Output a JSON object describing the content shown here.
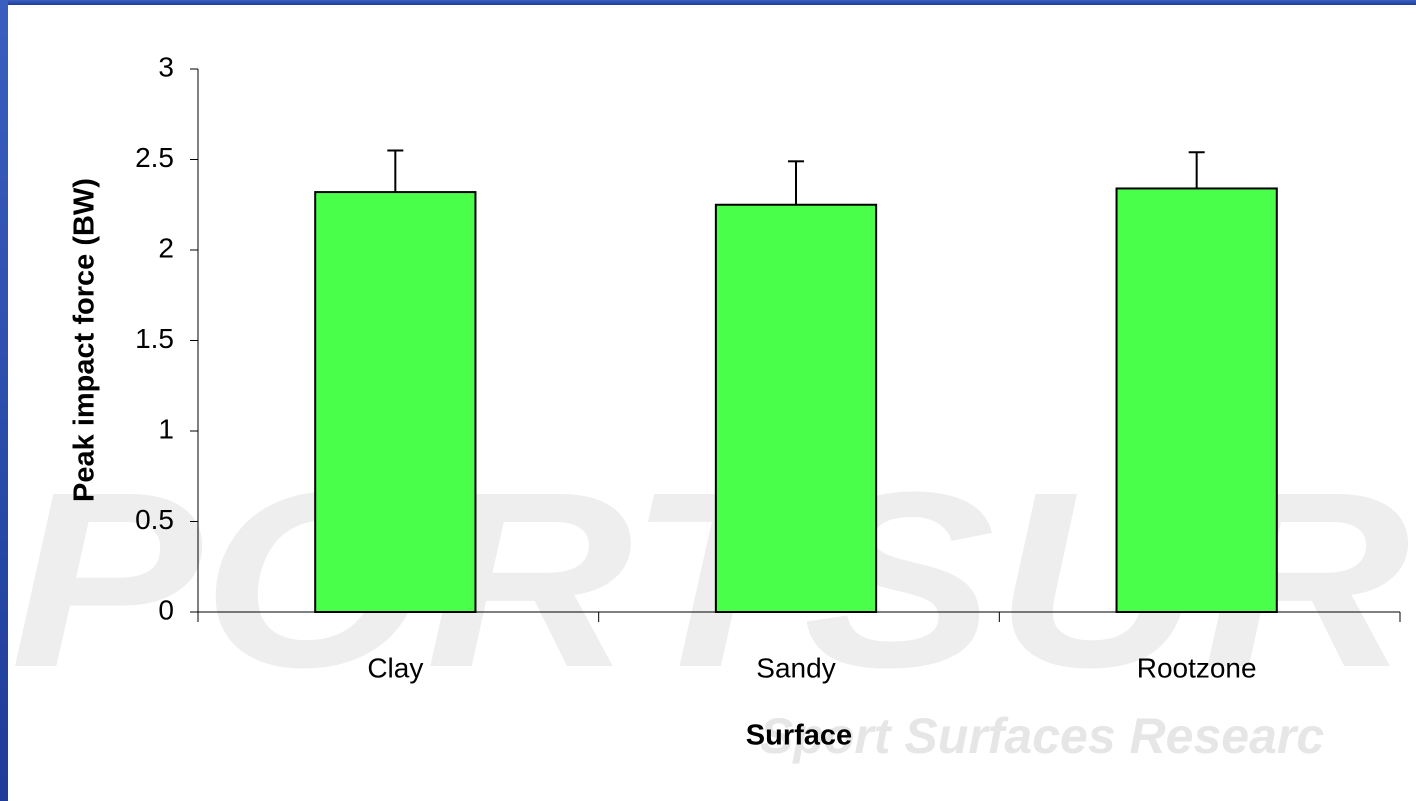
{
  "chart_data": {
    "type": "bar",
    "x_label": "Surface",
    "y_label": "Peak impact force (BW)",
    "categories": [
      "Clay",
      "Sandy",
      "Rootzone"
    ],
    "values": [
      2.32,
      2.25,
      2.34
    ],
    "errors": [
      0.23,
      0.24,
      0.2
    ],
    "color": "#40ff40",
    "ylim": [
      0,
      3
    ],
    "yticks": [
      0,
      0.5,
      1,
      1.5,
      2,
      2.5,
      3
    ],
    "watermark": "PORTSUR",
    "watermark_subtitle": "Sport Surfaces Researc"
  }
}
